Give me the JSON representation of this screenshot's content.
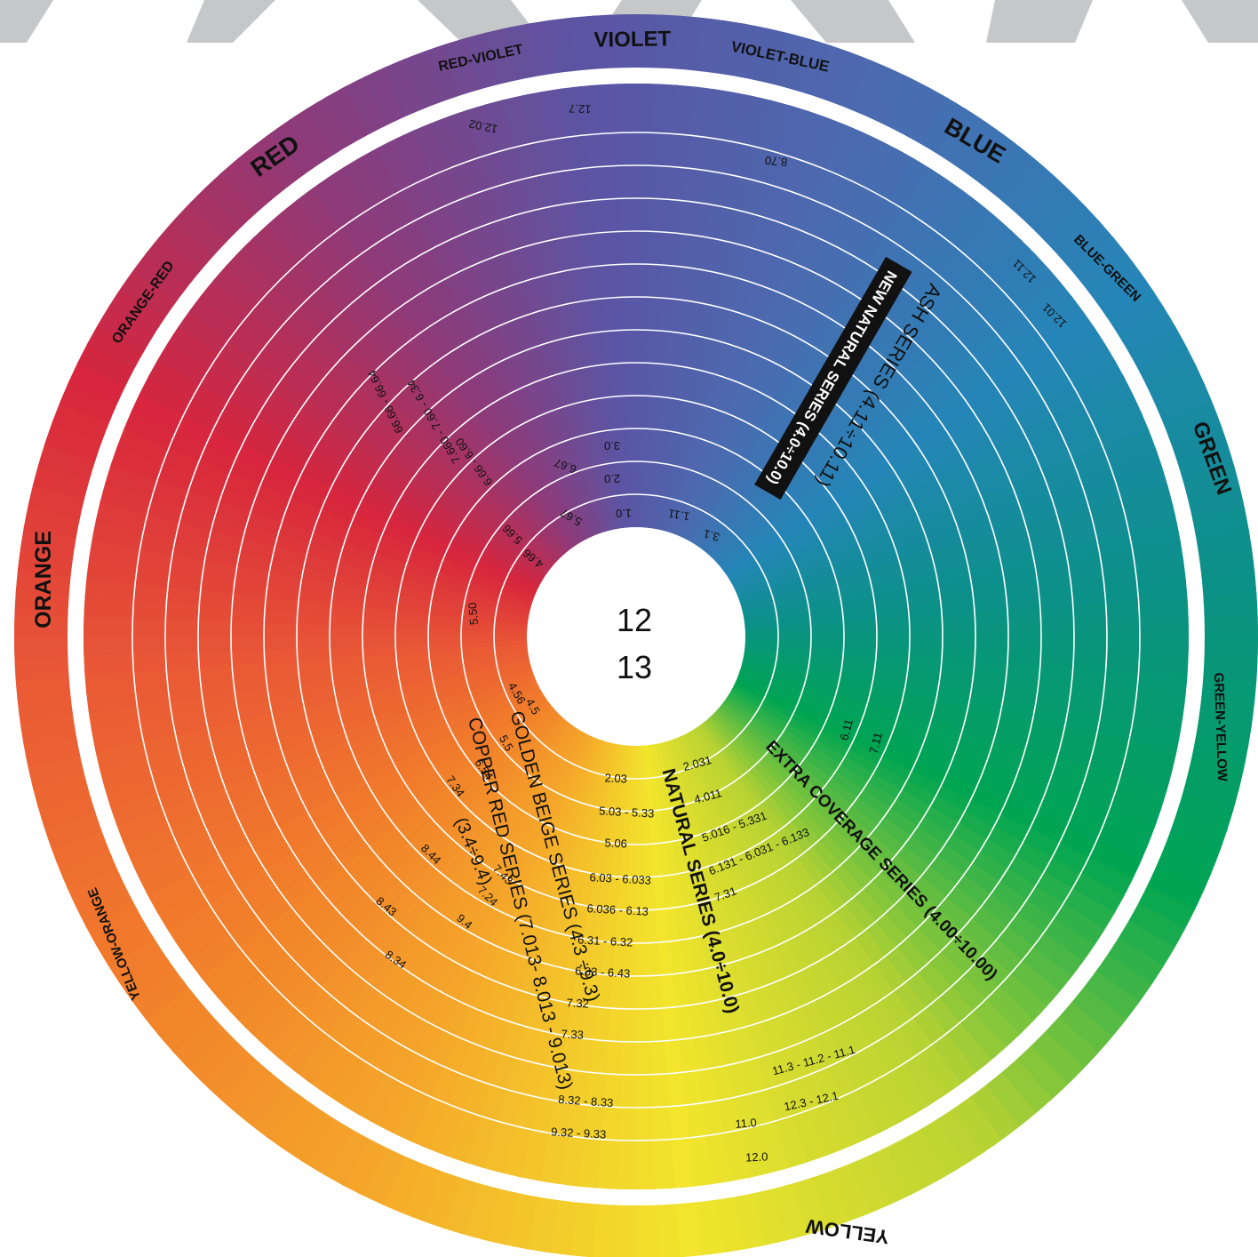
{
  "hues": [
    {
      "label": "VIOLET",
      "color": "#5b55a4"
    },
    {
      "label": "VIOLET-BLUE",
      "color": "#4b6bb0"
    },
    {
      "label": "BLUE",
      "color": "#2585b8"
    },
    {
      "label": "BLUE-GREEN",
      "color": "#0b9187"
    },
    {
      "label": "GREEN",
      "color": "#00a552"
    },
    {
      "label": "GREEN-YELLOW",
      "color": "#b7d233"
    },
    {
      "label": "YELLOW",
      "color": "#f2e52c"
    },
    {
      "label": "YELLOW-ORANGE",
      "color": "#f5a92a"
    },
    {
      "label": "ORANGE",
      "color": "#f17e2a"
    },
    {
      "label": "ORANGE-RED",
      "color": "#ea5a35"
    },
    {
      "label": "RED",
      "color": "#d7263d"
    },
    {
      "label": "RED-VIOLET",
      "color": "#8f3a78"
    }
  ],
  "center": {
    "line1": "12",
    "line2": "13"
  },
  "series": [
    {
      "key": "ash",
      "label": "ASH SERIES (4.11÷10.11)"
    },
    {
      "key": "new_natural",
      "label": "NEW NATURAL SERIES (4.0÷10.0)"
    },
    {
      "key": "extra",
      "label": "EXTRA COVERAGE SERIES  (4.00÷10.00)"
    },
    {
      "key": "natural",
      "label": "NATURAL SERIES (4.0÷10.0)"
    },
    {
      "key": "golden",
      "label": "GOLDEN BEIGE SERIES (4.3 ÷9.3)"
    },
    {
      "key": "copper",
      "label": "COPPER RED SERIES (7.013- 8.013 - 9.013)"
    },
    {
      "key": "copper_sub",
      "label": "(3.4÷9.4)"
    }
  ],
  "codes": [
    "12.7",
    "12.02",
    "8.70",
    "3.0",
    "2.0",
    "1.0",
    "3.1",
    "1.11",
    "12.11",
    "12.01",
    "66.66 - 66.64",
    "7.660 - 7.60 - 6.34",
    "6.66 - 6.60",
    "6.67",
    "5.66",
    "5.67",
    "4.66",
    "5.50",
    "4.56",
    "4.5",
    "5.5",
    "6.54",
    "7.34",
    "7.43",
    "8.44",
    "7.24",
    "8.43",
    "9.4",
    "8.34",
    "2.03",
    "5.03 - 5.33",
    "5.06",
    "6.03 - 6.033",
    "6.036 - 6.13",
    "6.31 - 6.32",
    "6.33 - 6.43",
    "7.32",
    "7.33",
    "8.32 - 8.33",
    "9.32 - 9.33",
    "2.031",
    "4.011",
    "5.016 - 5.331",
    "6.131 - 6.031 - 6.133",
    "7.31",
    "6.11",
    "7.11",
    "11.3 - 11.2 - 11.1",
    "12.3 - 12.1",
    "11.0",
    "12.0"
  ]
}
